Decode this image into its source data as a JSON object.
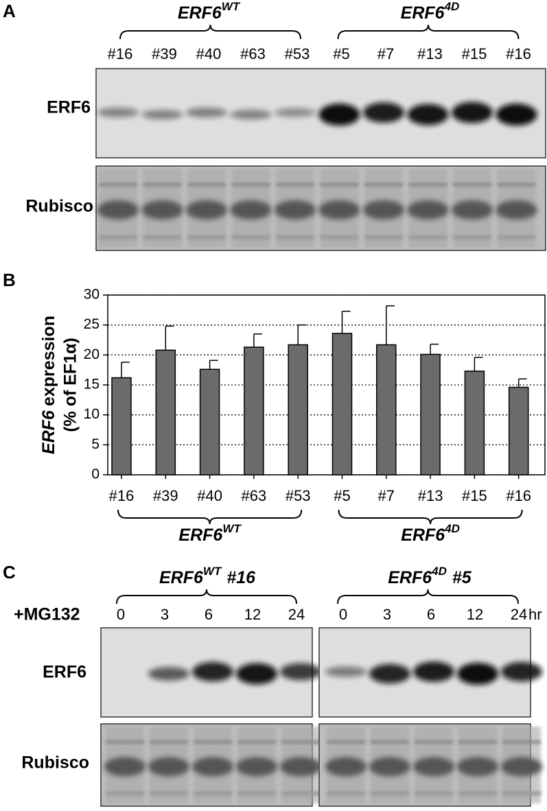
{
  "panel_a": {
    "label": "A",
    "groups": [
      {
        "name": "ERF6",
        "sup": "WT"
      },
      {
        "name": "ERF6",
        "sup": "4D"
      }
    ],
    "lanes": [
      "#16",
      "#39",
      "#40",
      "#63",
      "#53",
      "#5",
      "#7",
      "#13",
      "#15",
      "#16"
    ],
    "rows": [
      "ERF6",
      "Rubisco"
    ]
  },
  "chart_data": {
    "type": "bar",
    "panel_label": "B",
    "ylabel_italic": "ERF6",
    "ylabel": "expression",
    "ylabel_2": "(% of EF1α)",
    "categories": [
      "#16",
      "#39",
      "#40",
      "#63",
      "#53",
      "#5",
      "#7",
      "#13",
      "#15",
      "#16"
    ],
    "values": [
      16.2,
      20.8,
      17.6,
      21.3,
      21.7,
      23.6,
      21.7,
      20.1,
      17.3,
      14.6
    ],
    "errors": [
      2.6,
      4.0,
      1.5,
      2.2,
      3.3,
      3.7,
      6.5,
      1.7,
      2.3,
      1.4
    ],
    "color": "#6b6b6b",
    "ylim": [
      0,
      30
    ],
    "yticks": [
      0,
      5,
      10,
      15,
      20,
      25,
      30
    ],
    "grid": true,
    "groups": [
      {
        "name": "ERF6",
        "sup": "WT"
      },
      {
        "name": "ERF6",
        "sup": "4D"
      }
    ]
  },
  "panel_c": {
    "label": "C",
    "groups": [
      {
        "name": "ERF6",
        "sup": "WT",
        "suffix": "#16"
      },
      {
        "name": "ERF6",
        "sup": "4D",
        "suffix": "#5"
      }
    ],
    "treatment": "+MG132",
    "times": [
      "0",
      "3",
      "6",
      "12",
      "24"
    ],
    "unit": "hr",
    "rows": [
      "ERF6",
      "Rubisco"
    ]
  }
}
